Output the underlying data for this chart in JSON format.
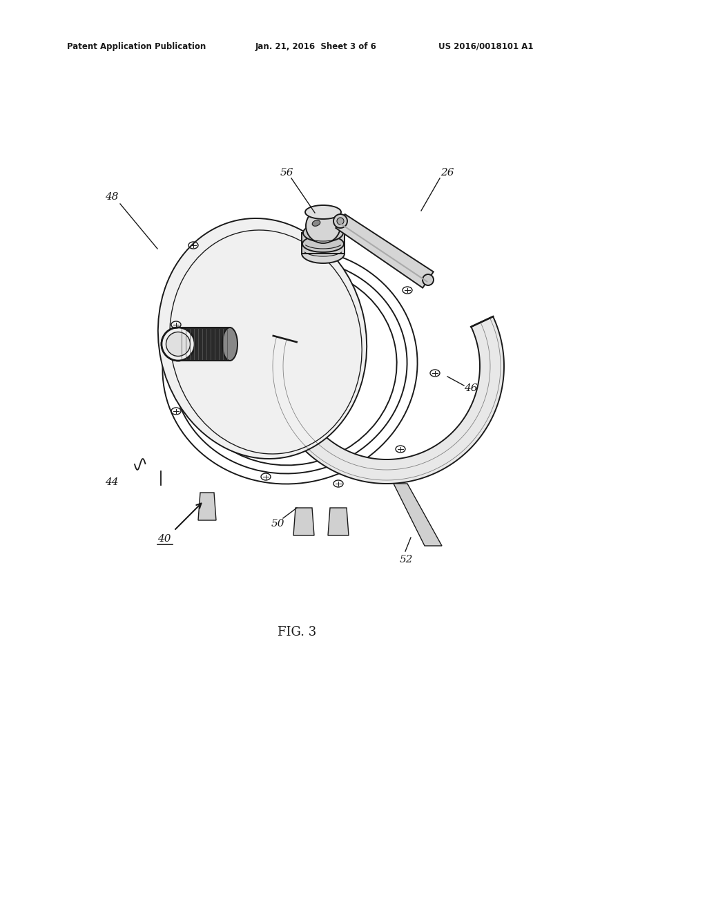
{
  "bg_color": "#ffffff",
  "header_left": "Patent Application Publication",
  "header_center": "Jan. 21, 2016  Sheet 3 of 6",
  "header_right": "US 2016/0018101 A1",
  "fig_label": "FIG. 3",
  "line_color": "#1a1a1a",
  "lw": 1.4
}
